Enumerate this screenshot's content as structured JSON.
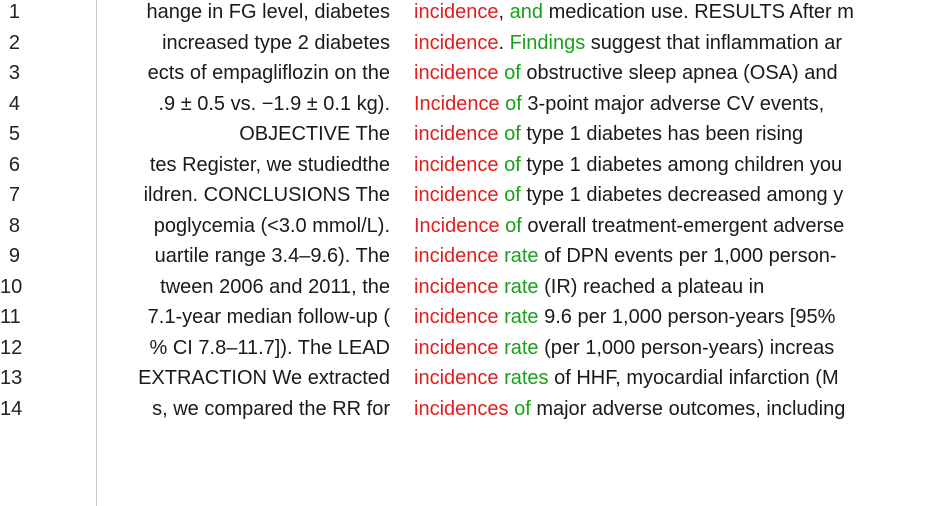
{
  "colors": {
    "keyword": "#e01e1e",
    "collocate": "#1aa01a",
    "text": "#1a1a1a"
  },
  "rows": [
    {
      "num": "1",
      "left": "hange in FG level, diabetes",
      "keyword": "incidence",
      "collocate": ", and",
      "right": " medication use. RESULTS After m"
    },
    {
      "num": "2",
      "left": "increased type 2 diabetes",
      "keyword": "incidence",
      "collocate": ". Findings",
      "right": " suggest that inflammation ar"
    },
    {
      "num": "3",
      "left": "ects of empagliflozin on the",
      "keyword": "incidence",
      "collocate": " of",
      "right": " obstructive sleep apnea (OSA) and"
    },
    {
      "num": "4",
      "left": ".9 ± 0.5 vs. −1.9 ± 0.1 kg).",
      "keyword": "Incidence",
      "collocate": " of",
      "right": " 3-point major adverse CV events,"
    },
    {
      "num": "5",
      "left": "OBJECTIVE The",
      "keyword": "incidence",
      "collocate": " of",
      "right": " type 1 diabetes has been rising"
    },
    {
      "num": "6",
      "left": "tes Register, we studiedthe",
      "keyword": "incidence",
      "collocate": " of",
      "right": " type 1 diabetes among children you"
    },
    {
      "num": "7",
      "left": "ildren. CONCLUSIONS The",
      "keyword": "incidence",
      "collocate": " of",
      "right": " type 1 diabetes decreased among y"
    },
    {
      "num": "8",
      "left": "poglycemia (<3.0 mmol/L).",
      "keyword": "Incidence",
      "collocate": " of",
      "right": " overall treatment-emergent adverse"
    },
    {
      "num": "9",
      "left": "uartile range 3.4–9.6). The",
      "keyword": "incidence",
      "collocate": " rate",
      "right": " of DPN events per 1,000 person-"
    },
    {
      "num": "10",
      "left": "tween 2006 and 2011, the",
      "keyword": "incidence",
      "collocate": " rate",
      "right": " (IR) reached a plateau in"
    },
    {
      "num": "11",
      "left": "7.1-year median follow-up (",
      "keyword": "incidence",
      "collocate": " rate",
      "right": " 9.6 per 1,000 person-years [95%"
    },
    {
      "num": "12",
      "left": "% CI 7.8–11.7]). The LEAD",
      "keyword": "incidence",
      "collocate": " rate",
      "right": " (per 1,000 person-years) increas"
    },
    {
      "num": "13",
      "left": "EXTRACTION We extracted",
      "keyword": "incidence",
      "collocate": " rates",
      "right": " of HHF, myocardial infarction (M"
    },
    {
      "num": "14",
      "left": "s, we compared the RR for",
      "keyword": "incidences",
      "collocate": " of",
      "right": " major adverse outcomes, including"
    }
  ]
}
